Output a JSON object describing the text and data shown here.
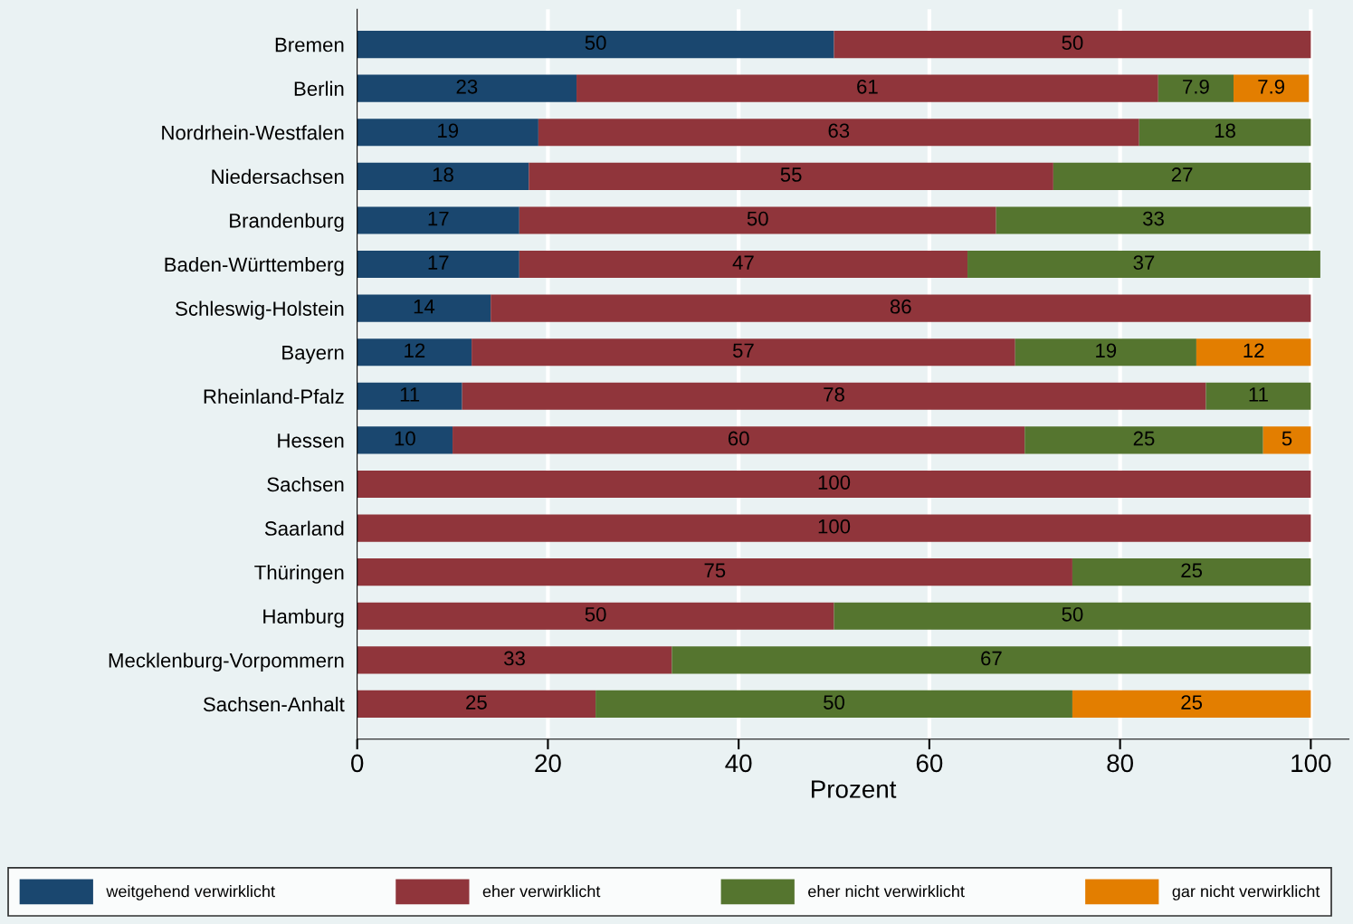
{
  "chart_data": {
    "type": "bar",
    "orientation": "horizontal",
    "stacked": true,
    "data_labels": true,
    "grid": "x",
    "legend": "bottom",
    "xlabel": "Prozent",
    "xlim": [
      0,
      104
    ],
    "xticks": [
      0,
      20,
      40,
      60,
      80,
      100
    ],
    "categories": [
      "Bremen",
      "Berlin",
      "Nordrhein-Westfalen",
      "Niedersachsen",
      "Brandenburg",
      "Baden-Württemberg",
      "Schleswig-Holstein",
      "Bayern",
      "Rheinland-Pfalz",
      "Hessen",
      "Sachsen",
      "Saarland",
      "Thüringen",
      "Hamburg",
      "Mecklenburg-Vorpommern",
      "Sachsen-Anhalt"
    ],
    "series": [
      {
        "name": "weitgehend verwirklicht",
        "color": "#1a476f",
        "values": [
          50,
          23,
          19,
          18,
          17,
          17,
          14,
          12,
          11,
          10,
          null,
          null,
          null,
          null,
          null,
          null
        ]
      },
      {
        "name": "eher verwirklicht",
        "color": "#90353b",
        "values": [
          50,
          61,
          63,
          55,
          50,
          47,
          86,
          57,
          78,
          60,
          100,
          100,
          75,
          50,
          33,
          25
        ]
      },
      {
        "name": "eher nicht verwirklicht",
        "color": "#55752f",
        "values": [
          null,
          7.9,
          18,
          27,
          33,
          37,
          null,
          19,
          11,
          25,
          null,
          null,
          25,
          50,
          67,
          50
        ]
      },
      {
        "name": "gar nicht verwirklicht",
        "color": "#e37e00",
        "values": [
          null,
          7.9,
          null,
          null,
          null,
          null,
          null,
          12,
          null,
          5,
          null,
          null,
          null,
          null,
          null,
          25
        ]
      }
    ]
  }
}
